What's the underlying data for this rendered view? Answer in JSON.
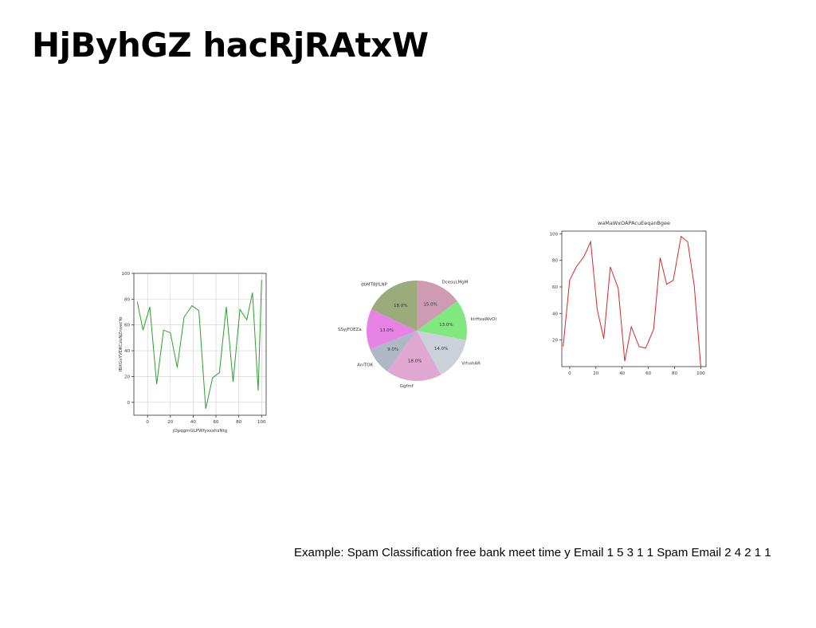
{
  "slide": {
    "title": "HjByhGZ hacRjRAtxW",
    "caption": "Example: Spam Classification free bank meet time y Email 1 5 3 1 1 Spam Email 2 4 2 1 1"
  },
  "chart_data": [
    {
      "type": "line",
      "title": "",
      "xlabel": "jOpqgmGLPWfyxsxhsNtg",
      "ylabel": "fBXGvYVDKCzuNZnvecYo",
      "xlim": [
        -12,
        104
      ],
      "ylim": [
        -10,
        100
      ],
      "xticks": [
        0,
        20,
        40,
        60,
        80,
        100
      ],
      "yticks": [
        0,
        20,
        40,
        60,
        80,
        100
      ],
      "grid": true,
      "color": "#2ca02c",
      "x": [
        -9,
        -4,
        2,
        8,
        14,
        20,
        26,
        32,
        39,
        45,
        51,
        57,
        63,
        69,
        75,
        81,
        87,
        92,
        97,
        100
      ],
      "y": [
        78,
        56,
        74,
        14,
        56,
        54,
        27,
        66,
        75,
        71,
        -5,
        19,
        23,
        74,
        16,
        72,
        64,
        85,
        9,
        95
      ]
    },
    {
      "type": "pie",
      "labels": [
        "DcosuLMgM",
        "kirHxaWvOl",
        "VrhohAR",
        "Ggfmf",
        "AniTOK",
        "SSyjFOEZa",
        "dbMTBJfLNP"
      ],
      "values": [
        15.0,
        13.0,
        14.0,
        18.0,
        9.0,
        13.0,
        18.0
      ],
      "autopct": [
        "15.0%",
        "13.0%",
        "14.0%",
        "18.0%",
        "9.0%",
        "13.0%",
        "18.0%"
      ],
      "colors": [
        "#cd9cb2",
        "#80e87e",
        "#cbd1d8",
        "#dfa7d1",
        "#afb9c6",
        "#e883e6",
        "#9cab7b"
      ]
    },
    {
      "type": "line",
      "title": "waMaWxOAPAcuEeqanBgee",
      "xlabel": "",
      "ylabel": "",
      "xlim": [
        -6,
        104
      ],
      "ylim": [
        0,
        102
      ],
      "xticks": [
        0,
        20,
        40,
        60,
        80,
        100
      ],
      "yticks": [
        20,
        40,
        60,
        80,
        100
      ],
      "grid": false,
      "color": "#d62728",
      "x": [
        -5,
        0,
        5,
        11,
        16,
        21,
        26,
        31,
        37,
        42,
        47,
        53,
        58,
        64,
        69,
        74,
        79,
        85,
        90,
        95,
        100
      ],
      "y": [
        15,
        65,
        75,
        83,
        94,
        43,
        21,
        75,
        59,
        4,
        30,
        15,
        14,
        28,
        82,
        62,
        65,
        98,
        94,
        61,
        0
      ]
    }
  ]
}
